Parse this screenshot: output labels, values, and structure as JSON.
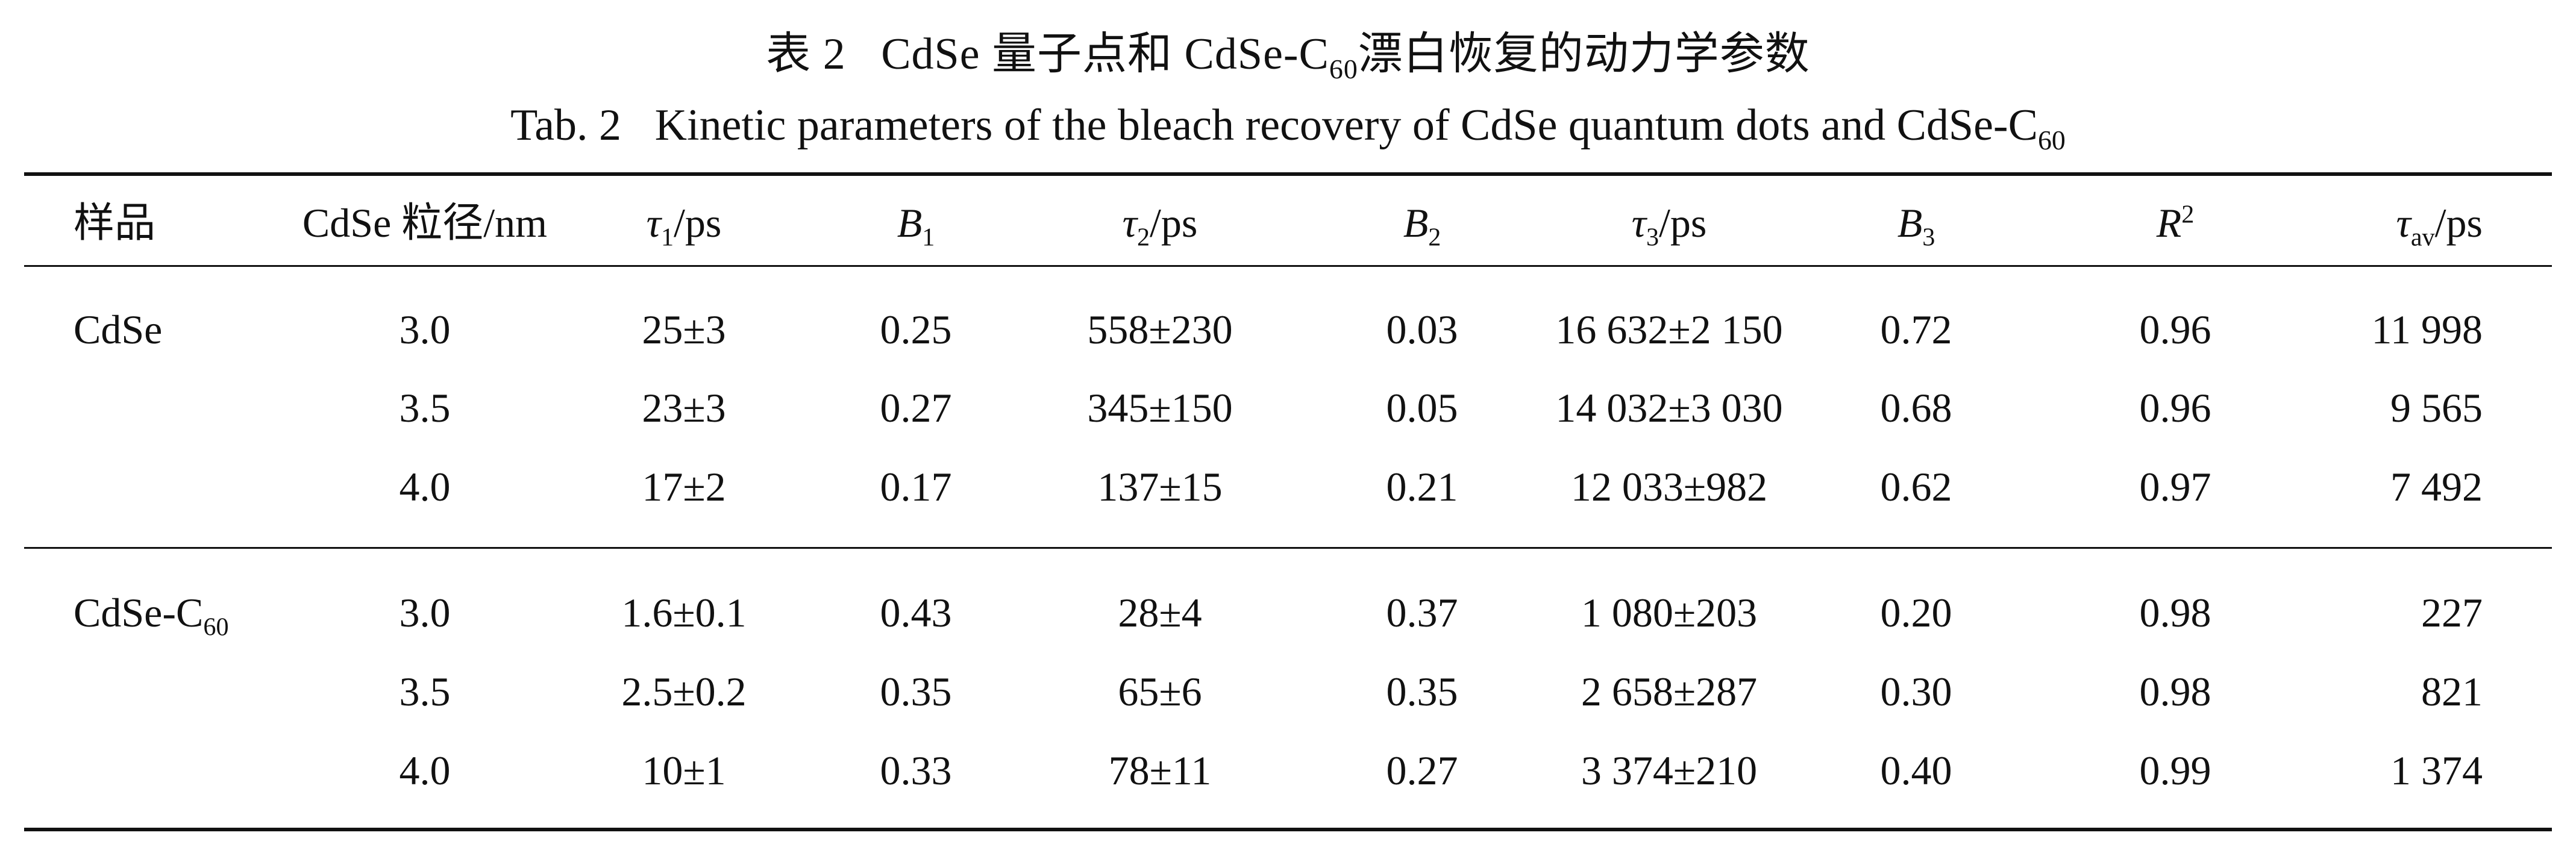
{
  "caption": {
    "zh_prefix": "表 2",
    "zh_mid": "CdSe 量子点和 CdSe-C",
    "zh_sub": "60",
    "zh_suffix": "漂白恢复的动力学参数",
    "en_prefix": "Tab. 2",
    "en_mid": "Kinetic parameters of the bleach recovery of CdSe quantum dots and CdSe-C",
    "en_sub": "60"
  },
  "headers": {
    "sample": "样品",
    "size": "CdSe 粒径/nm",
    "tau1_sym": "τ",
    "tau1_sub": "1",
    "tau1_unit": "/ps",
    "b1_sym": "B",
    "b1_sub": "1",
    "tau2_sym": "τ",
    "tau2_sub": "2",
    "tau2_unit": "/ps",
    "b2_sym": "B",
    "b2_sub": "2",
    "tau3_sym": "τ",
    "tau3_sub": "3",
    "tau3_unit": "/ps",
    "b3_sym": "B",
    "b3_sub": "3",
    "r2_sym": "R",
    "r2_sup": "2",
    "tauav_sym": "τ",
    "tauav_sub": "av",
    "tauav_unit": "/ps"
  },
  "groups": [
    {
      "label": "CdSe",
      "label_sub": ""
    },
    {
      "label": "CdSe-C",
      "label_sub": "60"
    }
  ],
  "rows": [
    [
      "3.0",
      "25±3",
      "0.25",
      "558±230",
      "0.03",
      "16 632±2 150",
      "0.72",
      "0.96",
      "11 998"
    ],
    [
      "3.5",
      "23±3",
      "0.27",
      "345±150",
      "0.05",
      "14 032±3 030",
      "0.68",
      "0.96",
      "9 565"
    ],
    [
      "4.0",
      "17±2",
      "0.17",
      "137±15",
      "0.21",
      "12 033±982",
      "0.62",
      "0.97",
      "7 492"
    ],
    [
      "3.0",
      "1.6±0.1",
      "0.43",
      "28±4",
      "0.37",
      "1 080±203",
      "0.20",
      "0.98",
      "227"
    ],
    [
      "3.5",
      "2.5±0.2",
      "0.35",
      "65±6",
      "0.35",
      "2 658±287",
      "0.30",
      "0.98",
      "821"
    ],
    [
      "4.0",
      "10±1",
      "0.33",
      "78±11",
      "0.27",
      "3 374±210",
      "0.40",
      "0.99",
      "1 374"
    ]
  ]
}
